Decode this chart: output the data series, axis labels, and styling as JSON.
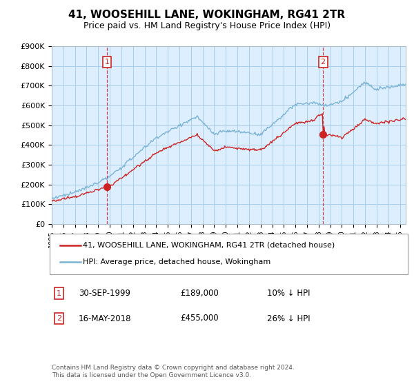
{
  "title": "41, WOOSEHILL LANE, WOKINGHAM, RG41 2TR",
  "subtitle": "Price paid vs. HM Land Registry's House Price Index (HPI)",
  "ylim": [
    0,
    900000
  ],
  "yticks": [
    0,
    100000,
    200000,
    300000,
    400000,
    500000,
    600000,
    700000,
    800000,
    900000
  ],
  "ytick_labels": [
    "£0",
    "£100K",
    "£200K",
    "£300K",
    "£400K",
    "£500K",
    "£600K",
    "£700K",
    "£800K",
    "£900K"
  ],
  "hpi_color": "#7ab3d4",
  "price_color": "#cc2222",
  "chart_bg": "#ddeeff",
  "transaction1": {
    "date": "30-SEP-1999",
    "price": 189000,
    "label": "1",
    "pct": "10%",
    "direction": "↓"
  },
  "transaction2": {
    "date": "16-MAY-2018",
    "price": 455000,
    "label": "2",
    "pct": "26%",
    "direction": "↓"
  },
  "legend_label1": "41, WOOSEHILL LANE, WOKINGHAM, RG41 2TR (detached house)",
  "legend_label2": "HPI: Average price, detached house, Wokingham",
  "footnote": "Contains HM Land Registry data © Crown copyright and database right 2024.\nThis data is licensed under the Open Government Licence v3.0.",
  "background_color": "#ffffff",
  "grid_color": "#aaccee",
  "t1_year": 1999.75,
  "t2_year": 2018.375,
  "xlim_left": 1995,
  "xlim_right": 2025.5
}
